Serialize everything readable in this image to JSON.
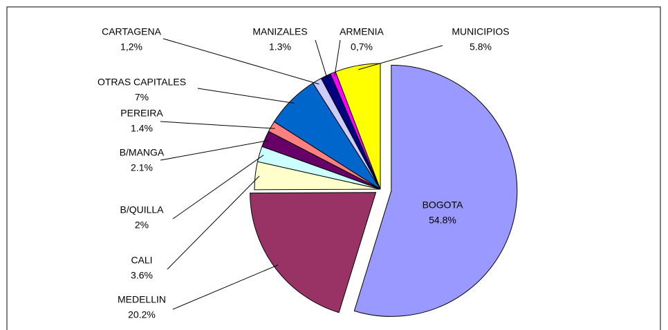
{
  "chart_data": {
    "type": "pie",
    "categories": [
      "BOGOTA",
      "MEDELLIN",
      "CALI",
      "B/QUILLA",
      "B/MANGA",
      "PEREIRA",
      "OTRAS CAPITALES",
      "CARTAGENA",
      "MANIZALES",
      "ARMENIA",
      "MUNICIPIOS"
    ],
    "values": [
      54.8,
      20.2,
      3.6,
      2,
      2.1,
      1.4,
      7,
      1.2,
      1.3,
      0.7,
      5.8
    ],
    "value_labels": [
      "54.8%",
      "20.2%",
      "3.6%",
      "2%",
      "2.1%",
      "1.4%",
      "7%",
      "1,2%",
      "1.3%",
      "0,7%",
      "5.8%"
    ],
    "colors": [
      "#9999ff",
      "#993366",
      "#ffffcc",
      "#ccffff",
      "#660066",
      "#ff8080",
      "#0066cc",
      "#ccccff",
      "#000080",
      "#ff00ff",
      "#ffff00"
    ]
  }
}
